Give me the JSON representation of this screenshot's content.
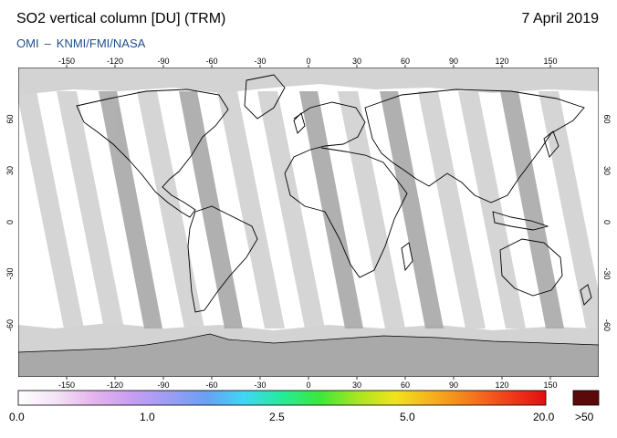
{
  "header": {
    "title": "SO2 vertical column [DU] (TRM)",
    "date": "7 April 2019",
    "credit_parts": [
      "OMI",
      "–",
      "KNMI/FMI/NASA"
    ]
  },
  "map": {
    "lon_ticks": [
      "-150",
      "-120",
      "-90",
      "-60",
      "-30",
      "0",
      "30",
      "60",
      "90",
      "120",
      "150"
    ],
    "lat_ticks": [
      "60",
      "30",
      "0",
      "-30",
      "-60"
    ],
    "colors": {
      "polar_fill": "#d3d3d3",
      "antarctica": "#a9a9a9",
      "swath_light": "#d3d3d3",
      "swath_dark": "#a8a8a8",
      "background": "#ffffff"
    }
  },
  "colorbar": {
    "labels": [
      "0.0",
      "1.0",
      "2.5",
      "5.0",
      "20.0",
      ">50"
    ],
    "gradient_colors": [
      "#ffffff",
      "#f3e3f6",
      "#e6b3ee",
      "#c79ef2",
      "#9b9df3",
      "#6aa0f3",
      "#3fd7f4",
      "#22ec9a",
      "#3ce83c",
      "#a9e51e",
      "#f0e41b",
      "#f5b01d",
      "#f57a1e",
      "#f23e1c",
      "#e30d12"
    ],
    "overflow_color": "#5a0a0a"
  }
}
